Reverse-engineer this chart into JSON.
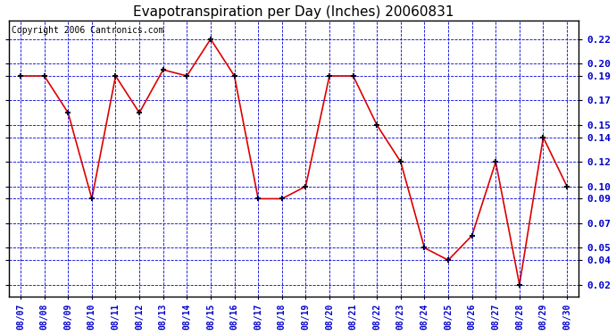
{
  "title": "Evapotranspiration per Day (Inches) 20060831",
  "copyright": "Copyright 2006 Cantronics.com",
  "dates": [
    "08/07",
    "08/08",
    "08/09",
    "08/10",
    "08/11",
    "08/12",
    "08/13",
    "08/14",
    "08/15",
    "08/16",
    "08/17",
    "08/18",
    "08/19",
    "08/20",
    "08/21",
    "08/22",
    "08/23",
    "08/24",
    "08/25",
    "08/26",
    "08/27",
    "08/28",
    "08/29",
    "08/30"
  ],
  "values": [
    0.19,
    0.19,
    0.16,
    0.09,
    0.19,
    0.16,
    0.195,
    0.19,
    0.22,
    0.19,
    0.09,
    0.09,
    0.1,
    0.19,
    0.19,
    0.15,
    0.12,
    0.05,
    0.04,
    0.06,
    0.12,
    0.02,
    0.14,
    0.1
  ],
  "line_color": "#dd0000",
  "marker_color": "#000000",
  "bg_color": "#ffffff",
  "plot_bg_color": "#ffffff",
  "grid_color": "#0000dd",
  "border_color": "#000000",
  "title_fontsize": 11,
  "copyright_fontsize": 7,
  "tick_label_color": "#0000cc",
  "ylim": [
    0.01,
    0.235
  ],
  "yticks": [
    0.02,
    0.04,
    0.05,
    0.07,
    0.09,
    0.1,
    0.12,
    0.14,
    0.15,
    0.17,
    0.19,
    0.2,
    0.22
  ]
}
